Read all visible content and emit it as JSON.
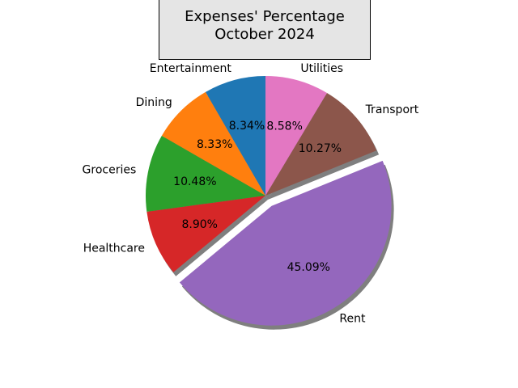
{
  "chart_data": {
    "type": "pie",
    "title_lines": [
      "Expenses' Percentage",
      "October 2024"
    ],
    "start_angle_deg": 90,
    "direction": "counterclockwise",
    "shadow": true,
    "slices": [
      {
        "label": "Entertainment",
        "value": 8.34,
        "pct_label": "8.34%",
        "color": "#1f77b4",
        "explode": 0
      },
      {
        "label": "Dining",
        "value": 8.33,
        "pct_label": "8.33%",
        "color": "#ff7f0e",
        "explode": 0
      },
      {
        "label": "Groceries",
        "value": 10.48,
        "pct_label": "10.48%",
        "color": "#2ca02c",
        "explode": 0
      },
      {
        "label": "Healthcare",
        "value": 8.9,
        "pct_label": "8.90%",
        "color": "#d62728",
        "explode": 0
      },
      {
        "label": "Rent",
        "value": 45.09,
        "pct_label": "45.09%",
        "color": "#9467bd",
        "explode": 0.1
      },
      {
        "label": "Transport",
        "value": 10.27,
        "pct_label": "10.27%",
        "color": "#8c564b",
        "explode": 0
      },
      {
        "label": "Utilities",
        "value": 8.58,
        "pct_label": "8.58%",
        "color": "#e377c2",
        "explode": 0
      }
    ]
  }
}
